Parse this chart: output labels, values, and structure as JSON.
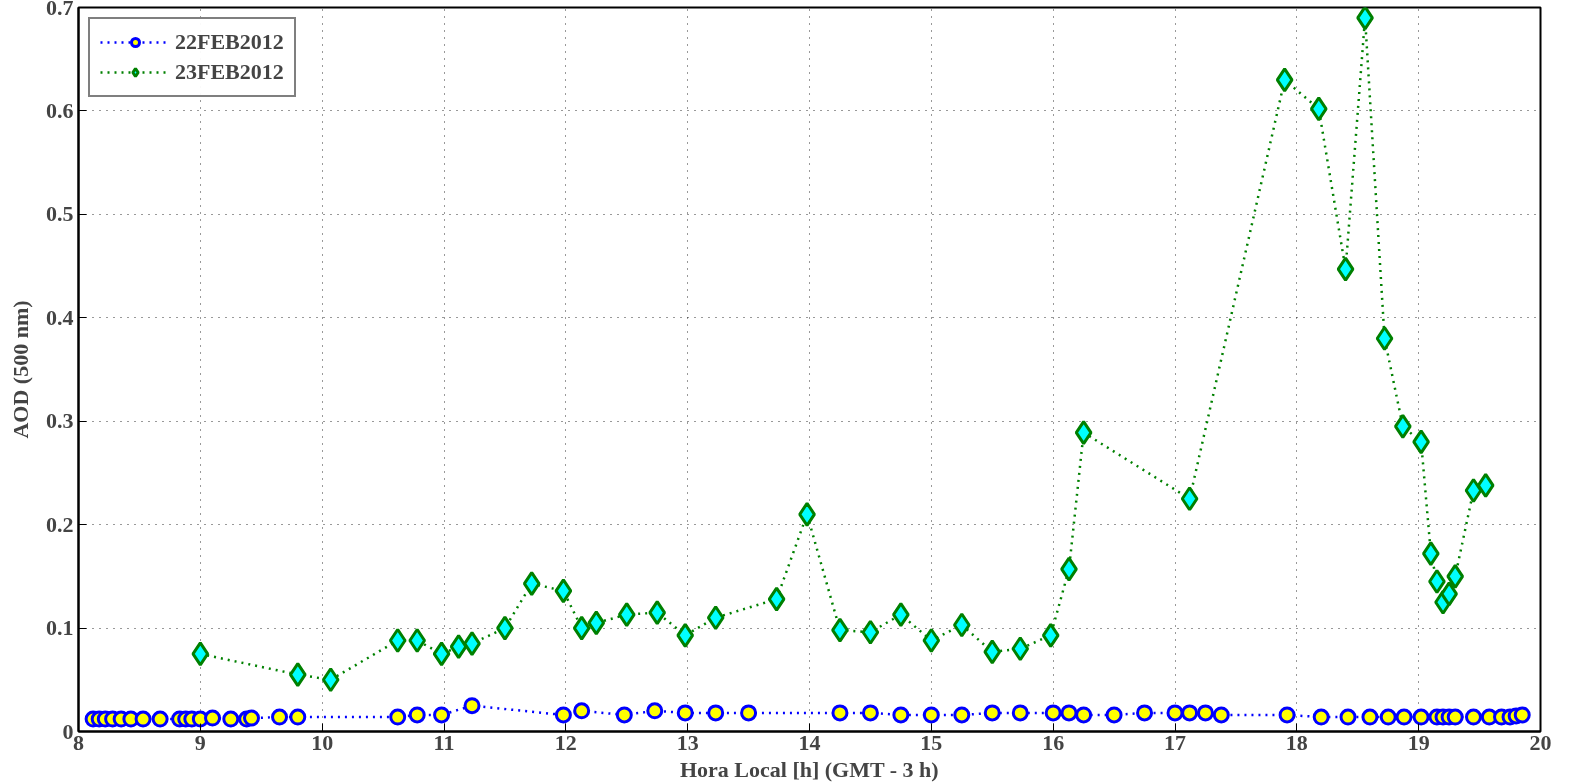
{
  "chart_data": {
    "type": "line",
    "xlabel": "Hora Local [h] (GMT - 3 h)",
    "ylabel": "AOD (500 nm)",
    "xlim": [
      8,
      20
    ],
    "xticks": [
      8,
      9,
      10,
      11,
      12,
      13,
      14,
      15,
      16,
      17,
      18,
      19,
      20
    ],
    "ylim": [
      0,
      0.7
    ],
    "yticks": [
      0,
      0.1,
      0.2,
      0.3,
      0.4,
      0.5,
      0.6,
      0.7
    ],
    "grid": true,
    "legend": "top left",
    "line_style": "dotted",
    "series": [
      {
        "name": "22FEB2012",
        "color": "#0000ff",
        "marker": "circle",
        "x": [
          8.12,
          8.17,
          8.22,
          8.28,
          8.35,
          8.43,
          8.53,
          8.67,
          8.83,
          8.88,
          8.93,
          9.0,
          9.1,
          9.25,
          9.38,
          9.42,
          9.65,
          9.8,
          10.62,
          10.78,
          10.98,
          11.23,
          11.98,
          12.13,
          12.48,
          12.73,
          12.98,
          13.23,
          13.5,
          14.25,
          14.5,
          14.75,
          15.0,
          15.25,
          15.5,
          15.73,
          16.0,
          16.13,
          16.25,
          16.5,
          16.75,
          17.0,
          17.12,
          17.25,
          17.38,
          17.92,
          18.2,
          18.42,
          18.6,
          18.75,
          18.88,
          19.02,
          19.15,
          19.2,
          19.25,
          19.3,
          19.45,
          19.58,
          19.68,
          19.75,
          19.8,
          19.85
        ],
        "values": [
          0.012,
          0.012,
          0.012,
          0.012,
          0.012,
          0.012,
          0.012,
          0.012,
          0.012,
          0.012,
          0.012,
          0.012,
          0.013,
          0.012,
          0.012,
          0.013,
          0.014,
          0.014,
          0.014,
          0.016,
          0.016,
          0.025,
          0.016,
          0.02,
          0.016,
          0.02,
          0.018,
          0.018,
          0.018,
          0.018,
          0.018,
          0.016,
          0.016,
          0.016,
          0.018,
          0.018,
          0.018,
          0.018,
          0.016,
          0.016,
          0.018,
          0.018,
          0.018,
          0.018,
          0.016,
          0.016,
          0.014,
          0.014,
          0.014,
          0.014,
          0.014,
          0.014,
          0.014,
          0.014,
          0.014,
          0.014,
          0.014,
          0.014,
          0.014,
          0.014,
          0.015,
          0.016
        ]
      },
      {
        "name": "23FEB2012",
        "color": "#008000",
        "marker": "diamond",
        "x": [
          9.0,
          9.8,
          10.07,
          10.62,
          10.78,
          10.98,
          11.12,
          11.23,
          11.5,
          11.72,
          11.98,
          12.13,
          12.25,
          12.5,
          12.75,
          12.98,
          13.23,
          13.73,
          13.98,
          14.25,
          14.5,
          14.75,
          15.0,
          15.25,
          15.5,
          15.73,
          15.98,
          16.13,
          16.25,
          17.12,
          17.9,
          18.18,
          18.4,
          18.56,
          18.72,
          18.87,
          19.02,
          19.1,
          19.15,
          19.2,
          19.25,
          19.3,
          19.45,
          19.55
        ],
        "values": [
          0.075,
          0.055,
          0.05,
          0.088,
          0.088,
          0.075,
          0.082,
          0.085,
          0.1,
          0.143,
          0.136,
          0.1,
          0.105,
          0.113,
          0.115,
          0.093,
          0.11,
          0.128,
          0.21,
          0.098,
          0.096,
          0.113,
          0.088,
          0.103,
          0.077,
          0.08,
          0.093,
          0.157,
          0.289,
          0.225,
          0.63,
          0.602,
          0.447,
          0.69,
          0.38,
          0.295,
          0.28,
          0.172,
          0.145,
          0.125,
          0.133,
          0.15,
          0.233,
          0.238
        ]
      }
    ]
  }
}
